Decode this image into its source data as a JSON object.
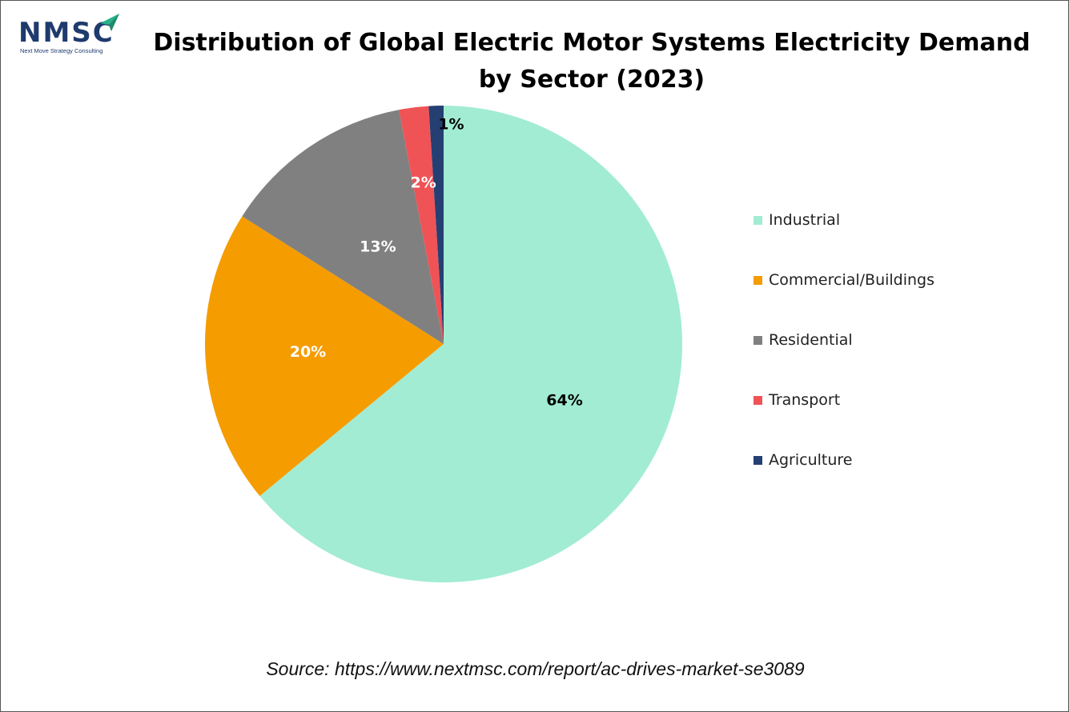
{
  "logo": {
    "text": "NMSC",
    "subtitle": "Next Move Strategy Consulting",
    "icon": "paper-plane-arrow-icon"
  },
  "colors": {
    "industrial": "#a2ecd3",
    "commercial": "#f59c00",
    "residential": "#808080",
    "transport": "#ef5356",
    "agriculture": "#253f73",
    "logo_blue": "#1f3b6e",
    "logo_green": "#27b28a"
  },
  "chart_data": {
    "type": "pie",
    "title": "Distribution of Global Electric Motor Systems Electricity Demand by Sector (2023)",
    "title_lines": [
      "Distribution of Global Electric Motor Systems Electricity Demand",
      "by Sector (2023)"
    ],
    "slices": [
      {
        "name": "Industrial",
        "value": 64,
        "label": "64%",
        "color": "#a2ecd3",
        "label_color": "#000000"
      },
      {
        "name": "Commercial/Buildings",
        "value": 20,
        "label": "20%",
        "color": "#f59c00",
        "label_color": "#ffffff"
      },
      {
        "name": "Residential",
        "value": 13,
        "label": "13%",
        "color": "#808080",
        "label_color": "#ffffff"
      },
      {
        "name": "Transport",
        "value": 2,
        "label": "2%",
        "color": "#ef5356",
        "label_color": "#ffffff"
      },
      {
        "name": "Agriculture",
        "value": 1,
        "label": "1%",
        "color": "#253f73",
        "label_color": "#000000"
      }
    ],
    "legend_position": "right"
  },
  "source": "Source: https://www.nextmsc.com/report/ac-drives-market-se3089"
}
